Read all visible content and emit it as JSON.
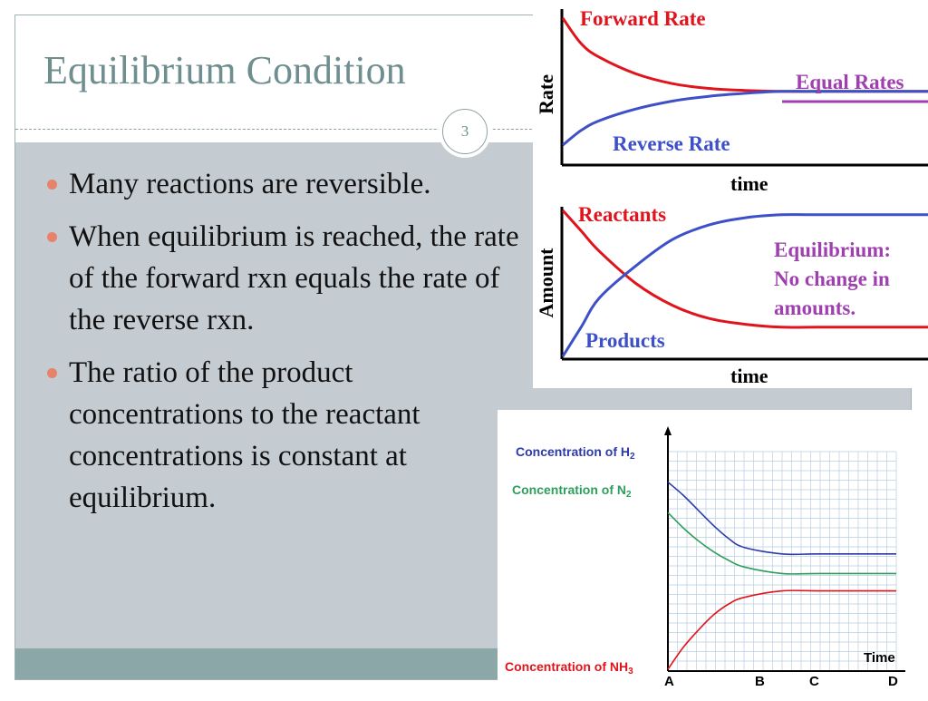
{
  "slide": {
    "title": "Equilibrium Condition",
    "number": "3",
    "bullets": [
      "Many reactions are reversible.",
      "When equilibrium is reached, the rate of the forward rxn equals the rate of the reverse rxn.",
      "The ratio of the product concentrations to the reactant concentrations is constant at equilibrium."
    ]
  },
  "colors": {
    "title": "#6e8e8f",
    "bullet_dot": "#e8826a",
    "panel": "#c4ccd2",
    "band": "#8ba7a8",
    "red": "#e0141c",
    "blue": "#3d50c8",
    "purple": "#a040b0",
    "green": "#2e9e5b",
    "navy": "#2d3aa8"
  },
  "chart_data": [
    {
      "type": "line",
      "ylabel": "Rate",
      "xlabel": "time",
      "series": [
        {
          "name": "Forward Rate",
          "color": "#e0141c",
          "x": [
            0,
            0.05,
            0.1,
            0.2,
            0.3,
            0.4,
            0.5,
            0.6,
            0.7,
            1.0
          ],
          "y": [
            1.0,
            0.74,
            0.6,
            0.43,
            0.33,
            0.28,
            0.26,
            0.25,
            0.25,
            0.25
          ]
        },
        {
          "name": "Reverse Rate",
          "color": "#3d50c8",
          "x": [
            0,
            0.05,
            0.1,
            0.2,
            0.3,
            0.4,
            0.5,
            0.6,
            0.7,
            1.0
          ],
          "y": [
            -0.3,
            -0.15,
            -0.05,
            0.07,
            0.15,
            0.2,
            0.23,
            0.25,
            0.25,
            0.25
          ]
        }
      ],
      "annotations": [
        "Equal Rates"
      ]
    },
    {
      "type": "line",
      "ylabel": "Amount",
      "xlabel": "time",
      "series": [
        {
          "name": "Reactants",
          "color": "#e0141c",
          "x": [
            0,
            0.05,
            0.1,
            0.2,
            0.3,
            0.4,
            0.5,
            0.6,
            0.7,
            1.0
          ],
          "y": [
            1.0,
            0.86,
            0.72,
            0.5,
            0.35,
            0.26,
            0.22,
            0.2,
            0.2,
            0.2
          ]
        },
        {
          "name": "Products",
          "color": "#3d50c8",
          "x": [
            0,
            0.05,
            0.1,
            0.2,
            0.3,
            0.4,
            0.5,
            0.6,
            0.7,
            1.0
          ],
          "y": [
            0.0,
            0.2,
            0.4,
            0.62,
            0.8,
            0.9,
            0.95,
            0.97,
            0.97,
            0.97
          ]
        }
      ],
      "annotations": [
        "Equilibrium:",
        "No change in",
        "amounts."
      ]
    },
    {
      "type": "line",
      "xlabel": "Time",
      "x_ticks": [
        "A",
        "B",
        "C",
        "D"
      ],
      "series": [
        {
          "name": "Concentration of H",
          "subscript": "2",
          "color": "#2d3aa8",
          "x": [
            0,
            0.2,
            0.4,
            0.6,
            0.8,
            1.0,
            1.5,
            2.0,
            3.0
          ],
          "y": [
            0.86,
            0.8,
            0.73,
            0.66,
            0.6,
            0.56,
            0.53,
            0.53,
            0.53
          ]
        },
        {
          "name": "Concentration of N",
          "subscript": "2",
          "color": "#2e9e5b",
          "x": [
            0,
            0.2,
            0.4,
            0.6,
            0.8,
            1.0,
            1.5,
            2.0,
            3.0
          ],
          "y": [
            0.72,
            0.65,
            0.59,
            0.54,
            0.5,
            0.47,
            0.44,
            0.44,
            0.44
          ]
        },
        {
          "name": "Concentration of NH",
          "subscript": "3",
          "color": "#e0141c",
          "x": [
            0,
            0.2,
            0.4,
            0.6,
            0.8,
            1.0,
            1.5,
            2.0,
            3.0
          ],
          "y": [
            0.0,
            0.1,
            0.18,
            0.25,
            0.3,
            0.33,
            0.36,
            0.36,
            0.36
          ]
        }
      ]
    }
  ]
}
